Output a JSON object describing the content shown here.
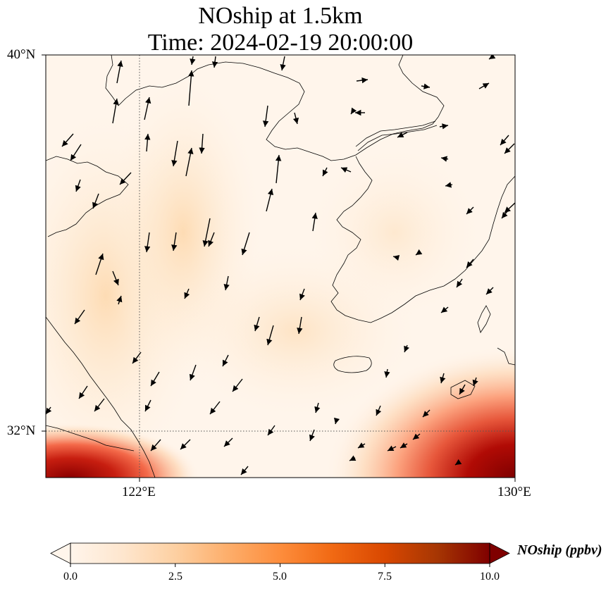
{
  "figure": {
    "title_line1": "NOship at 1.5km",
    "title_line2": "Time: 2024-02-19 20:00:00"
  },
  "map": {
    "extent": {
      "lon_min": 119.5,
      "lon_max": 130,
      "lat_min": 31,
      "lat_max": 40
    },
    "lat_labels": [
      {
        "value": 40,
        "label": "40°N"
      },
      {
        "value": 32,
        "label": "32°N"
      }
    ],
    "lon_labels": [
      {
        "value": 122,
        "label": "122°E"
      },
      {
        "value": 130,
        "label": "130°E"
      }
    ],
    "gridlines": {
      "lons": [
        122
      ],
      "lats": [
        32
      ],
      "style": "dotted"
    },
    "field_name": "NOship",
    "layers": [
      "coastlines",
      "wind-vectors",
      "concentration-shading"
    ]
  },
  "colorbar": {
    "label": "NOship (ppbv)",
    "min": 0,
    "max": 10,
    "extend": "both",
    "colormap": [
      "#fff5eb",
      "#fee6ce",
      "#fdd0a2",
      "#fdae6b",
      "#fd8d3c",
      "#f16913",
      "#d94801",
      "#a63603",
      "#7f0000"
    ],
    "ticks": [
      "0.0",
      "2.5",
      "5.0",
      "7.5",
      "10.0"
    ]
  }
}
